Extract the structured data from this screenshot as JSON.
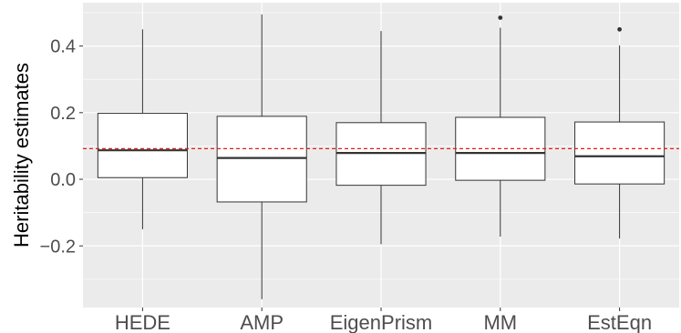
{
  "chart_data": {
    "type": "boxplot",
    "title": "",
    "xlabel": "",
    "ylabel": "Heritability estimates",
    "ylim": [
      -0.385,
      0.53
    ],
    "yticks": [
      -0.2,
      0.0,
      0.2,
      0.4
    ],
    "ytick_labels": [
      "−0.2",
      "0.0",
      "0.2",
      "0.4"
    ],
    "grid": true,
    "reference_line": {
      "value": 0.092,
      "style": "dashed",
      "color": "#e41a1c"
    },
    "categories": [
      "HEDE",
      "AMP",
      "EigenPrism",
      "MM",
      "EstEqn"
    ],
    "boxes": [
      {
        "min": -0.15,
        "q1": 0.005,
        "median": 0.087,
        "q3": 0.198,
        "max": 0.45,
        "outliers": []
      },
      {
        "min": -0.36,
        "q1": -0.068,
        "median": 0.064,
        "q3": 0.189,
        "max": 0.495,
        "outliers": []
      },
      {
        "min": -0.195,
        "q1": -0.018,
        "median": 0.079,
        "q3": 0.17,
        "max": 0.445,
        "outliers": []
      },
      {
        "min": -0.172,
        "q1": -0.003,
        "median": 0.079,
        "q3": 0.186,
        "max": 0.455,
        "outliers": [
          0.485
        ]
      },
      {
        "min": -0.178,
        "q1": -0.014,
        "median": 0.069,
        "q3": 0.172,
        "max": 0.402,
        "outliers": [
          0.45
        ]
      }
    ],
    "colors": {
      "panel_background": "#ebebeb",
      "grid": "#ffffff",
      "box_fill": "#ffffff",
      "box_stroke": "#333333",
      "median": "#333333"
    }
  }
}
